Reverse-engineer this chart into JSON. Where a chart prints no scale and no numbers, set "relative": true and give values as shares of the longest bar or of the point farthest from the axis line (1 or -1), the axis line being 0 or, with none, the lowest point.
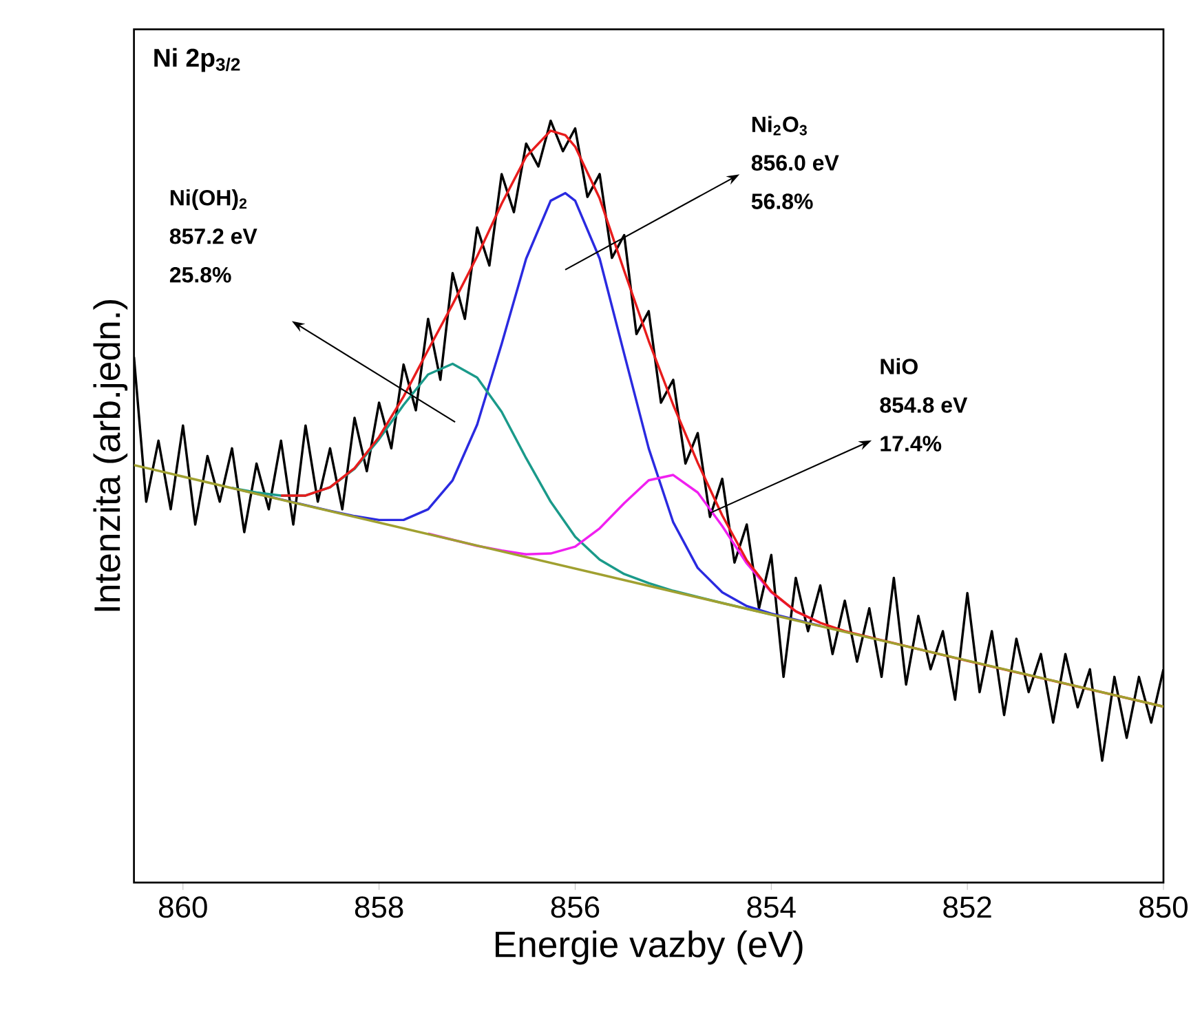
{
  "chart_data": {
    "type": "line",
    "relative": true,
    "xlabel": "Energie vazby (eV)",
    "ylabel": "Intenzita (arb.jedn.)",
    "xlim": [
      860.5,
      850
    ],
    "xticks": [
      860,
      858,
      856,
      854,
      852,
      850
    ],
    "marker": "none",
    "line_style": "solid",
    "grid": false,
    "annotations": [
      "Ni 2p$_{3/2}$",
      "Ni(OH)$_{2}$",
      "857.2 eV",
      "25.8%",
      "Ni$_{2}$O$_{3}$",
      "856.0 eV",
      "56.8%",
      "NiO",
      "854.8 eV",
      "17.4%"
    ],
    "series": [
      {
        "color": "#000000",
        "x": [
          860.5,
          860.375,
          860.25,
          860.125,
          860,
          859.875,
          859.75,
          859.625,
          859.5,
          859.375,
          859.25,
          859.125,
          859,
          858.875,
          858.75,
          858.625,
          858.5,
          858.375,
          858.25,
          858.125,
          858,
          857.875,
          857.75,
          857.625,
          857.5,
          857.375,
          857.25,
          857.125,
          857,
          856.875,
          856.75,
          856.625,
          856.5,
          856.375,
          856.25,
          856.125,
          856,
          855.875,
          855.75,
          855.625,
          855.5,
          855.375,
          855.25,
          855.125,
          855,
          854.875,
          854.75,
          854.625,
          854.5,
          854.375,
          854.25,
          854.125,
          854,
          853.875,
          853.75,
          853.625,
          853.5,
          853.375,
          853.25,
          853.125,
          853,
          852.875,
          852.75,
          852.625,
          852.5,
          852.375,
          852.25,
          852.125,
          852,
          851.875,
          851.75,
          851.625,
          851.5,
          851.375,
          851.25,
          851.125,
          851,
          850.875,
          850.75,
          850.625,
          850.5,
          850.375,
          850.25,
          850.125,
          850
        ],
        "values": [
          0.69,
          0.5,
          0.58,
          0.49,
          0.6,
          0.47,
          0.56,
          0.5,
          0.57,
          0.46,
          0.55,
          0.49,
          0.58,
          0.47,
          0.6,
          0.5,
          0.57,
          0.49,
          0.61,
          0.54,
          0.63,
          0.57,
          0.68,
          0.62,
          0.74,
          0.66,
          0.8,
          0.74,
          0.86,
          0.81,
          0.93,
          0.88,
          0.97,
          0.94,
          1.0,
          0.96,
          0.99,
          0.9,
          0.93,
          0.82,
          0.85,
          0.72,
          0.75,
          0.63,
          0.66,
          0.55,
          0.59,
          0.48,
          0.53,
          0.42,
          0.47,
          0.36,
          0.43,
          0.27,
          0.4,
          0.33,
          0.39,
          0.3,
          0.37,
          0.29,
          0.36,
          0.27,
          0.4,
          0.26,
          0.35,
          0.28,
          0.33,
          0.24,
          0.38,
          0.25,
          0.33,
          0.22,
          0.32,
          0.25,
          0.3,
          0.21,
          0.3,
          0.23,
          0.28,
          0.16,
          0.27,
          0.19,
          0.27,
          0.21,
          0.28
        ]
      },
      {
        "color": "#2a2ae0",
        "x": [
          859.5,
          858.5,
          858.25,
          858,
          857.75,
          857.5,
          857.25,
          857,
          856.75,
          856.5,
          856.25,
          856.1,
          856,
          855.75,
          855.5,
          855.25,
          855,
          854.75,
          854.5,
          854.25,
          854,
          853.5
        ],
        "values": [
          0.518,
          0.488,
          0.481,
          0.476,
          0.476,
          0.49,
          0.528,
          0.601,
          0.707,
          0.819,
          0.895,
          0.905,
          0.895,
          0.819,
          0.694,
          0.57,
          0.473,
          0.413,
          0.381,
          0.363,
          0.353,
          0.337
        ]
      },
      {
        "color": "#1a9a8a",
        "x": [
          859.5,
          859.25,
          859,
          858.75,
          858.5,
          858.25,
          858,
          857.75,
          857.5,
          857.25,
          857,
          856.75,
          856.5,
          856.25,
          856,
          855.75,
          855.5,
          855.25,
          855,
          854.5,
          854
        ],
        "values": [
          0.518,
          0.512,
          0.508,
          0.508,
          0.519,
          0.543,
          0.582,
          0.627,
          0.667,
          0.681,
          0.663,
          0.618,
          0.557,
          0.5,
          0.454,
          0.424,
          0.405,
          0.393,
          0.383,
          0.367,
          0.352
        ]
      },
      {
        "color": "#f020f0",
        "x": [
          857.5,
          857,
          856.75,
          856.5,
          856.25,
          856,
          855.75,
          855.5,
          855.25,
          855,
          854.75,
          854.5,
          854.25,
          854,
          853.75,
          853.5
        ],
        "values": [
          0.458,
          0.442,
          0.436,
          0.431,
          0.432,
          0.441,
          0.465,
          0.498,
          0.528,
          0.535,
          0.512,
          0.468,
          0.419,
          0.381,
          0.356,
          0.341
        ]
      },
      {
        "color": "#e81c1c",
        "x": [
          859,
          858.75,
          858.5,
          858.25,
          858,
          857.75,
          857.5,
          857.25,
          857,
          856.75,
          856.5,
          856.25,
          856.1,
          856,
          855.75,
          855.5,
          855.25,
          855,
          854.75,
          854.5,
          854.25,
          854,
          853.75,
          853.5,
          853.25,
          853,
          852,
          851,
          850
        ],
        "values": [
          0.508,
          0.508,
          0.519,
          0.544,
          0.585,
          0.638,
          0.699,
          0.759,
          0.822,
          0.891,
          0.953,
          0.987,
          0.981,
          0.966,
          0.898,
          0.803,
          0.711,
          0.627,
          0.551,
          0.482,
          0.423,
          0.382,
          0.356,
          0.341,
          0.33,
          0.322,
          0.291,
          0.261,
          0.231
        ]
      },
      {
        "color": "#a0a030",
        "x": [
          860.5,
          850
        ],
        "values": [
          0.548,
          0.231
        ]
      }
    ]
  }
}
